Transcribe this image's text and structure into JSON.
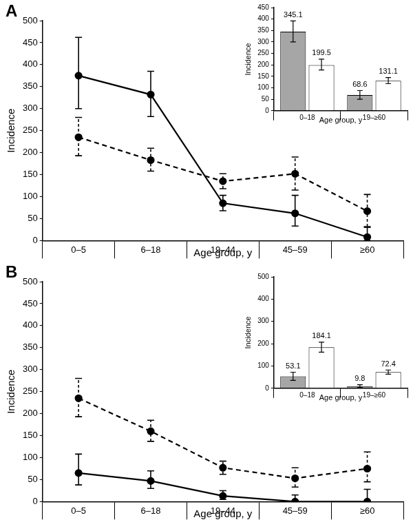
{
  "chart_data": [
    {
      "type": "line",
      "title": "A",
      "x_label": "Age group, y",
      "y_label": "Incidence",
      "categories": [
        "0–5",
        "6–18",
        "19–44",
        "45–59",
        "≥60"
      ],
      "ylim": [
        0,
        500
      ],
      "yticks": [
        0,
        50,
        100,
        150,
        200,
        250,
        300,
        350,
        400,
        450,
        500
      ],
      "grid": false,
      "series": [
        {
          "color": "#000000",
          "line_style": "solid",
          "marker": "circle",
          "values": [
            375,
            332,
            85,
            62,
            8
          ],
          "lower": [
            300,
            282,
            68,
            33,
            0
          ],
          "upper": [
            462,
            385,
            103,
            103,
            30
          ]
        },
        {
          "color": "#000000",
          "line_style": "dashed",
          "marker": "circle",
          "values": [
            235,
            183,
            135,
            152,
            67
          ],
          "lower": [
            193,
            158,
            118,
            115,
            32
          ],
          "upper": [
            280,
            210,
            152,
            190,
            105
          ]
        }
      ]
    },
    {
      "type": "bar",
      "x_label": "Age group, y",
      "y_label": "Incidence",
      "categories": [
        "0–18",
        "19–≥60"
      ],
      "ylim": [
        0,
        450
      ],
      "yticks": [
        0,
        50,
        100,
        150,
        200,
        250,
        300,
        350,
        400,
        450
      ],
      "grid": false,
      "data_labels": true,
      "series": [
        {
          "color": "#a6a6a6",
          "values": [
            345.1,
            68.6
          ],
          "lower": [
            300,
            50
          ],
          "upper": [
            392,
            88
          ]
        },
        {
          "color": "#ffffff",
          "values": [
            199.5,
            131.1
          ],
          "lower": [
            178,
            118
          ],
          "upper": [
            225,
            145
          ]
        }
      ]
    },
    {
      "type": "line",
      "title": "B",
      "x_label": "Age group, y",
      "y_label": "Incidence",
      "categories": [
        "0–5",
        "6–18",
        "19–44",
        "45–59",
        "≥60"
      ],
      "ylim": [
        0,
        500
      ],
      "yticks": [
        0,
        50,
        100,
        150,
        200,
        250,
        300,
        350,
        400,
        450,
        500
      ],
      "grid": false,
      "series": [
        {
          "color": "#000000",
          "line_style": "solid",
          "marker": "circle",
          "values": [
            65,
            47,
            13,
            0,
            0
          ],
          "lower": [
            38,
            30,
            5,
            0,
            0
          ],
          "upper": [
            108,
            70,
            25,
            15,
            28
          ]
        },
        {
          "color": "#000000",
          "line_style": "dashed",
          "marker": "circle",
          "values": [
            235,
            160,
            77,
            53,
            75
          ],
          "lower": [
            193,
            137,
            62,
            33,
            45
          ],
          "upper": [
            280,
            185,
            92,
            77,
            113
          ]
        }
      ]
    },
    {
      "type": "bar",
      "x_label": "Age group, y",
      "y_label": "Incidence",
      "categories": [
        "0–18",
        "19–≥60"
      ],
      "ylim": [
        0,
        500
      ],
      "yticks": [
        0,
        100,
        200,
        300,
        400,
        500
      ],
      "grid": false,
      "data_labels": true,
      "series": [
        {
          "color": "#a6a6a6",
          "values": [
            53.1,
            9.8
          ],
          "lower": [
            35,
            4
          ],
          "upper": [
            72,
            16
          ]
        },
        {
          "color": "#ffffff",
          "values": [
            184.1,
            72.4
          ],
          "lower": [
            162,
            63
          ],
          "upper": [
            207,
            82
          ]
        }
      ]
    }
  ]
}
